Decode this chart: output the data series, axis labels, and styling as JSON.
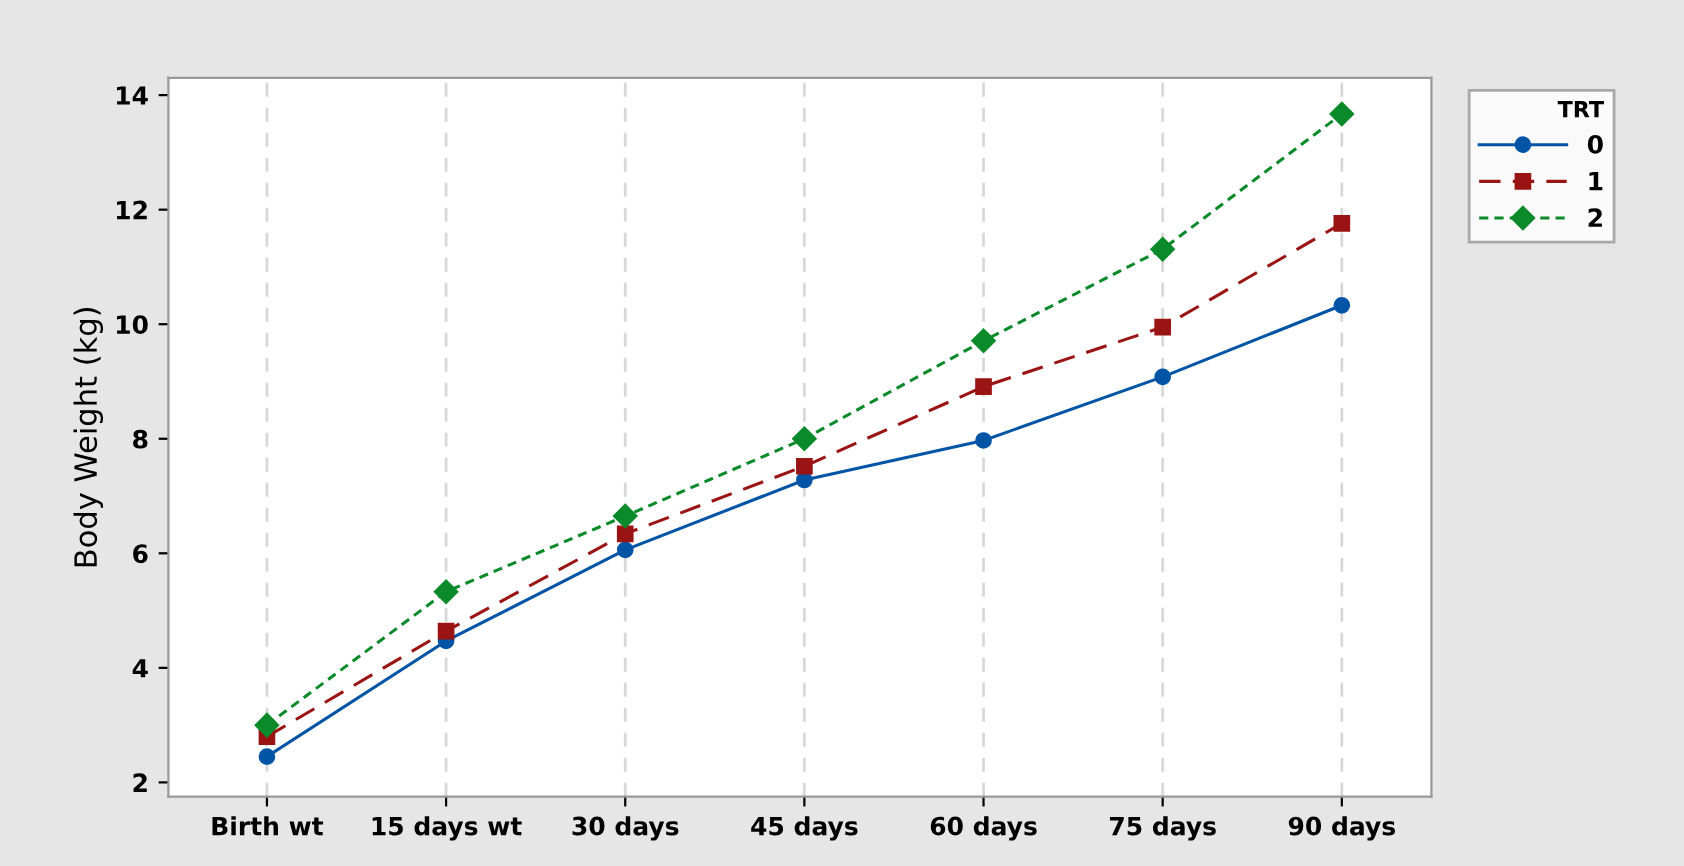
{
  "chart_data": {
    "type": "line",
    "ylabel": "Body Weight (kg)",
    "categories": [
      "Birth wt",
      "15 days wt",
      "30 days",
      "45 days",
      "60 days",
      "75 days",
      "90 days"
    ],
    "series": [
      {
        "name": "0",
        "color": "#0054a6",
        "marker": "circle",
        "line_style": "solid",
        "values": [
          2.45,
          4.47,
          6.06,
          7.28,
          7.97,
          9.08,
          10.33
        ]
      },
      {
        "name": "1",
        "color": "#9b1414",
        "marker": "square",
        "line_style": "dashed",
        "values": [
          2.8,
          4.64,
          6.34,
          7.52,
          8.91,
          9.95,
          11.76
        ]
      },
      {
        "name": "2",
        "color": "#0a8a2a",
        "marker": "diamond",
        "line_style": "dotted",
        "values": [
          3.0,
          5.33,
          6.65,
          8.0,
          9.71,
          11.31,
          13.67
        ]
      }
    ],
    "ylim": [
      1.75,
      14.3
    ],
    "yticks": [
      2,
      4,
      6,
      8,
      10,
      12,
      14
    ],
    "grid": "x",
    "legend": "top right",
    "legend_title": "TRT"
  }
}
